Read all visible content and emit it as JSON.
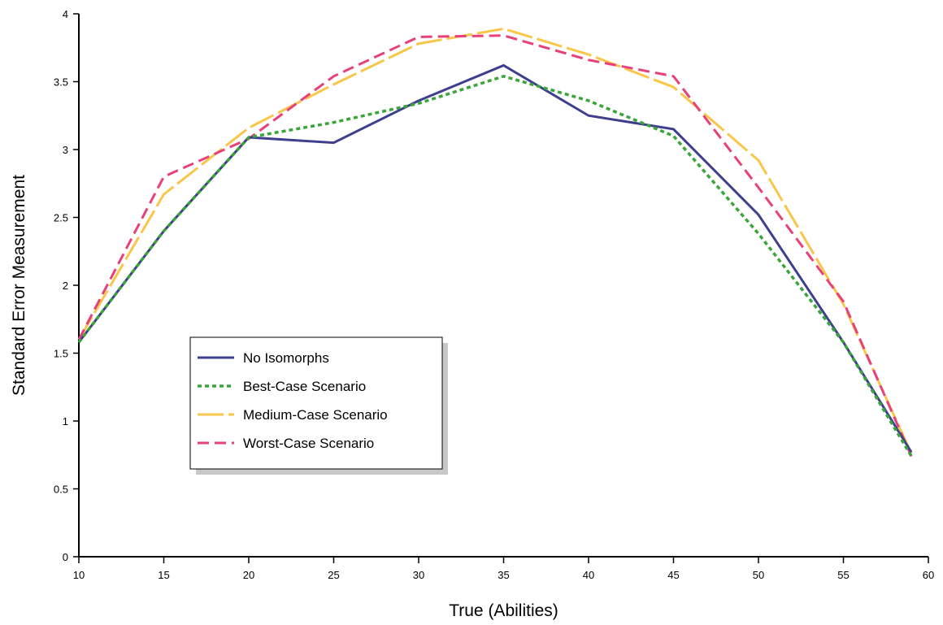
{
  "chart_data": {
    "type": "line",
    "title": "",
    "xlabel": "True (Abilities)",
    "ylabel": "Standard Error Measurement",
    "xlim": [
      10,
      60
    ],
    "ylim": [
      0,
      4
    ],
    "xticks": [
      10,
      15,
      20,
      25,
      30,
      35,
      40,
      45,
      50,
      55,
      60
    ],
    "yticks": [
      0,
      0.5,
      1,
      1.5,
      2,
      2.5,
      3,
      3.5,
      4
    ],
    "ytick_labels": [
      "0",
      "0.5",
      "1",
      "1.5",
      "2",
      "2.5",
      "3",
      "3.5",
      "4"
    ],
    "grid": false,
    "legend_position": "lower-left",
    "x": [
      10,
      15,
      20,
      25,
      30,
      35,
      40,
      45,
      50,
      55,
      59
    ],
    "series": [
      {
        "name": "No Isomorphs",
        "color": "#3f3f8f",
        "style": "solid",
        "values": [
          1.58,
          2.4,
          3.09,
          3.05,
          3.36,
          3.62,
          3.25,
          3.15,
          2.52,
          1.58,
          0.77
        ]
      },
      {
        "name": "Best-Case Scenario",
        "color": "#3aa63a",
        "style": "dotted",
        "values": [
          1.58,
          2.4,
          3.09,
          3.2,
          3.34,
          3.54,
          3.36,
          3.1,
          2.38,
          1.58,
          0.74
        ]
      },
      {
        "name": "Medium-Case Scenario",
        "color": "#f8c74a",
        "style": "long-dash",
        "values": [
          1.6,
          2.67,
          3.16,
          3.48,
          3.78,
          3.89,
          3.7,
          3.46,
          2.92,
          1.86,
          0.76
        ]
      },
      {
        "name": "Worst-Case Scenario",
        "color": "#e8407a",
        "style": "dashed",
        "values": [
          1.6,
          2.8,
          3.08,
          3.54,
          3.83,
          3.84,
          3.66,
          3.54,
          2.72,
          1.88,
          0.74
        ]
      }
    ]
  }
}
